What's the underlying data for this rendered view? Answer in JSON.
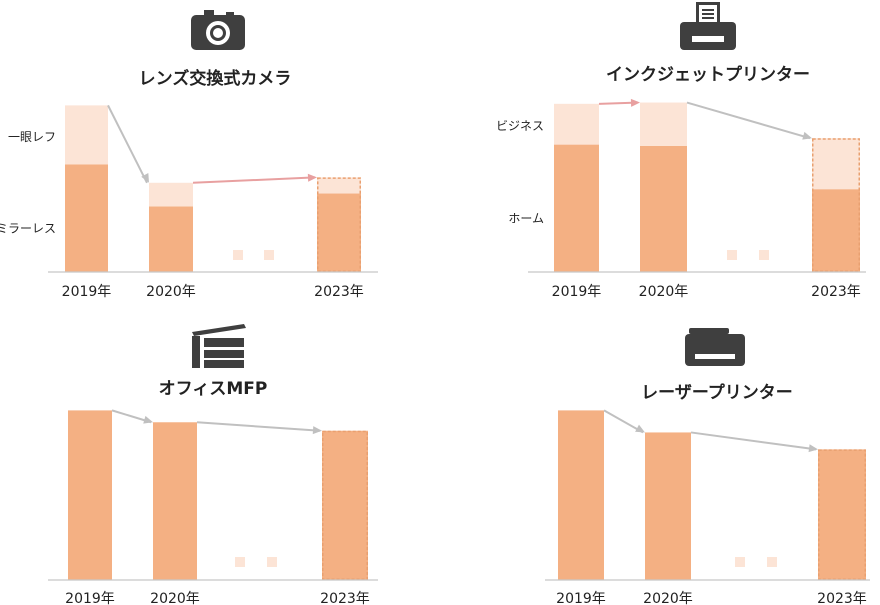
{
  "colors": {
    "primary": "#f4b083",
    "secondary": "#fce4d6",
    "forecast_border": "#e9a070",
    "arrow_grey": "#c0c0c0",
    "arrow_pink": "#e8a0a0",
    "axis": "#c8c8c8",
    "icon": "#3f3f3f"
  },
  "chart_data": [
    {
      "type": "bar",
      "stacked": true,
      "icon": "camera-icon",
      "title": "レンズ交換式カメラ",
      "categories": [
        "2019年",
        "2020年",
        "2023年"
      ],
      "forecast_category": "2023年",
      "series": [
        {
          "name": "ミラーレス",
          "values": [
            100,
            61,
            73
          ]
        },
        {
          "name": "一眼レフ",
          "values": [
            55,
            22,
            15
          ]
        }
      ],
      "ylim": [
        0,
        160
      ],
      "trend_arrows": [
        "grey",
        "pink"
      ],
      "gap_marker": true
    },
    {
      "type": "bar",
      "stacked": true,
      "icon": "printer-icon",
      "title": "インクジェットプリンター",
      "categories": [
        "2019年",
        "2020年",
        "2023年"
      ],
      "forecast_category": "2023年",
      "series": [
        {
          "name": "ホーム",
          "values": [
            100,
            99,
            65
          ]
        },
        {
          "name": "ビジネス",
          "values": [
            32,
            34,
            40
          ]
        }
      ],
      "ylim": [
        0,
        135
      ],
      "trend_arrows": [
        "pink",
        "grey"
      ],
      "gap_marker": true
    },
    {
      "type": "bar",
      "stacked": false,
      "icon": "copier-icon",
      "title": "オフィスMFP",
      "categories": [
        "2019年",
        "2020年",
        "2023年"
      ],
      "forecast_category": "2023年",
      "series": [
        {
          "name": "",
          "values": [
            100,
            93,
            88
          ]
        }
      ],
      "ylim": [
        0,
        102
      ],
      "trend_arrows": [
        "grey",
        "grey"
      ],
      "gap_marker": true
    },
    {
      "type": "bar",
      "stacked": false,
      "icon": "laser-printer-icon",
      "title": "レーザープリンター",
      "categories": [
        "2019年",
        "2020年",
        "2023年"
      ],
      "forecast_category": "2023年",
      "series": [
        {
          "name": "",
          "values": [
            100,
            87,
            77
          ]
        }
      ],
      "ylim": [
        0,
        102
      ],
      "trend_arrows": [
        "grey",
        "grey"
      ],
      "gap_marker": true
    }
  ]
}
